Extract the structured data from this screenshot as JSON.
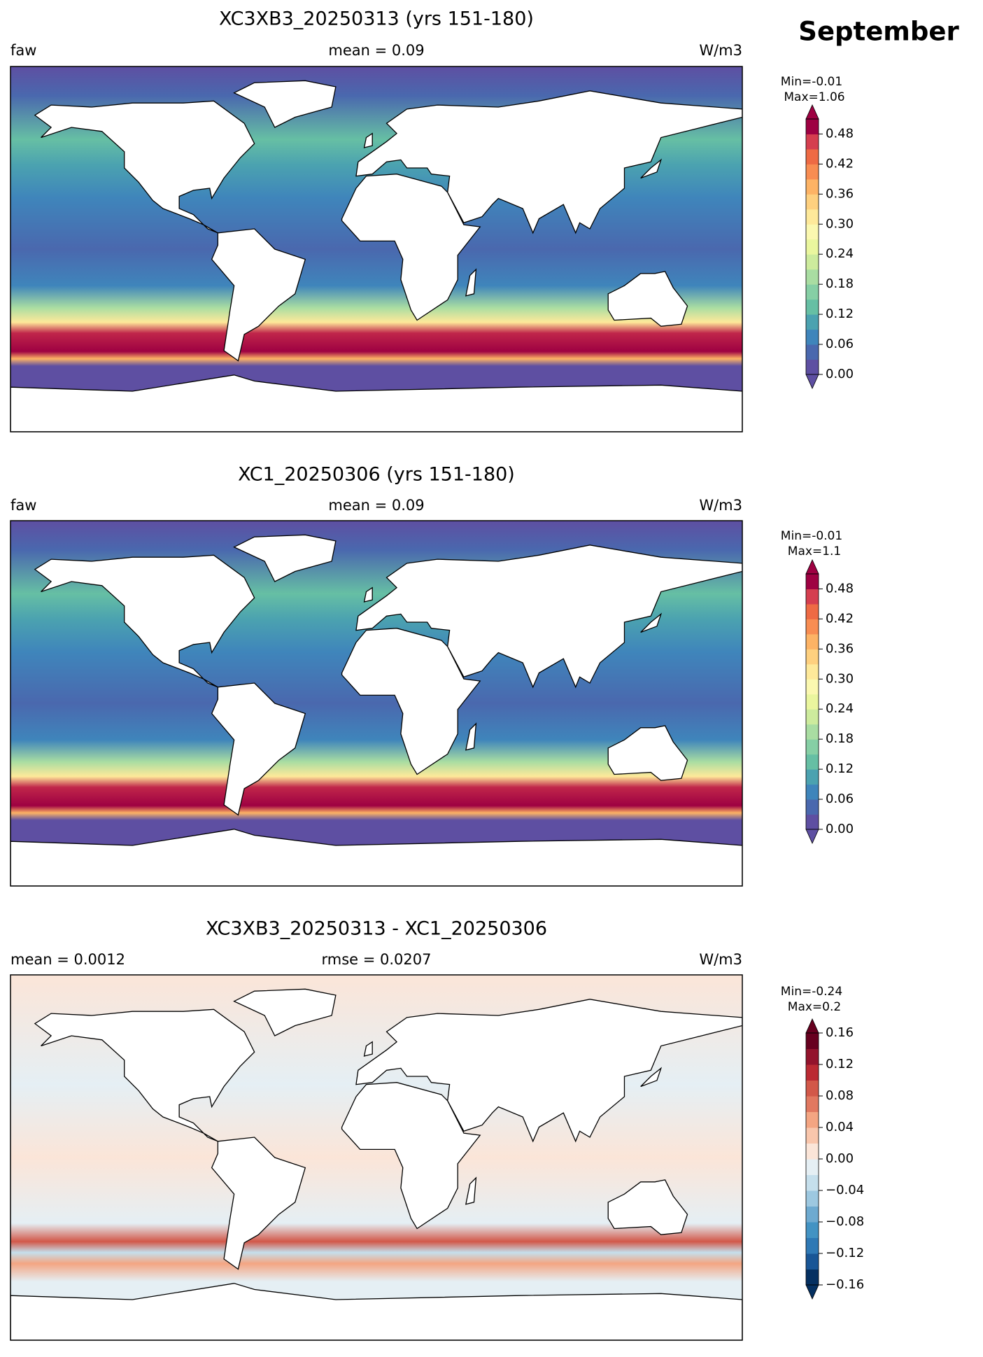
{
  "figure_title": "September",
  "chart_data": [
    {
      "type": "map",
      "title": "XC3XB3_20250313 (yrs 151-180)",
      "left_label": "faw",
      "center_label": "mean = 0.09",
      "right_label": "W/m3",
      "min_label": "Min=-0.01",
      "max_label": "Max=1.06",
      "ylim": [
        0,
        0.51
      ],
      "yticks": [
        {
          "value": 0,
          "label": "0.00"
        },
        0.06,
        0.12,
        0.18,
        0.24,
        {
          "value": 0.3,
          "label": "0.30"
        },
        0.36,
        0.42,
        0.48
      ],
      "colors": [
        "#5e4fa2",
        "#4a68ae",
        "#3f85bb",
        "#4ba2b0",
        "#66bfa4",
        "#86cfa5",
        "#a9dda2",
        "#cdeb9d",
        "#eaf69e",
        "#fbf8b0",
        "#fee99a",
        "#fed07f",
        "#fdb365",
        "#f88d52",
        "#ee6a44",
        "#d53e4f",
        "#9e0142"
      ]
    },
    {
      "type": "map",
      "title": "XC1_20250306 (yrs 151-180)",
      "left_label": "faw",
      "center_label": "mean = 0.09",
      "right_label": "W/m3",
      "min_label": "Min=-0.01",
      "max_label": "Max=1.1",
      "ylim": [
        0,
        0.51
      ],
      "yticks": [
        {
          "value": 0,
          "label": "0.00"
        },
        0.06,
        0.12,
        0.18,
        0.24,
        {
          "value": 0.3,
          "label": "0.30"
        },
        0.36,
        0.42,
        0.48
      ],
      "colors": [
        "#5e4fa2",
        "#4a68ae",
        "#3f85bb",
        "#4ba2b0",
        "#66bfa4",
        "#86cfa5",
        "#a9dda2",
        "#cdeb9d",
        "#eaf69e",
        "#fbf8b0",
        "#fee99a",
        "#fed07f",
        "#fdb365",
        "#f88d52",
        "#ee6a44",
        "#d53e4f",
        "#9e0142"
      ]
    },
    {
      "type": "map",
      "title": "XC3XB3_20250313 - XC1_20250306",
      "left_label": "mean = 0.0012",
      "center_label": "rmse = 0.0207",
      "right_label": "W/m3",
      "min_label": "Min=-0.24",
      "max_label": "Max=0.2",
      "ylim": [
        -0.16,
        0.16
      ],
      "yticks": [
        {
          "value": -0.16,
          "label": "−0.16"
        },
        {
          "value": -0.12,
          "label": "−0.12"
        },
        {
          "value": -0.08,
          "label": "−0.08"
        },
        {
          "value": -0.04,
          "label": "−0.04"
        },
        {
          "value": 0,
          "label": "0.00"
        },
        0.04,
        0.08,
        0.12,
        0.16
      ],
      "colors": [
        "#053061",
        "#195696",
        "#2f79b5",
        "#4393c3",
        "#6eaad0",
        "#9dc8e0",
        "#c5dfec",
        "#e5eff4",
        "#fbe5d8",
        "#f9c6ac",
        "#f4a582",
        "#e17860",
        "#d25849",
        "#bb2a33",
        "#93132c",
        "#67001f"
      ]
    }
  ]
}
